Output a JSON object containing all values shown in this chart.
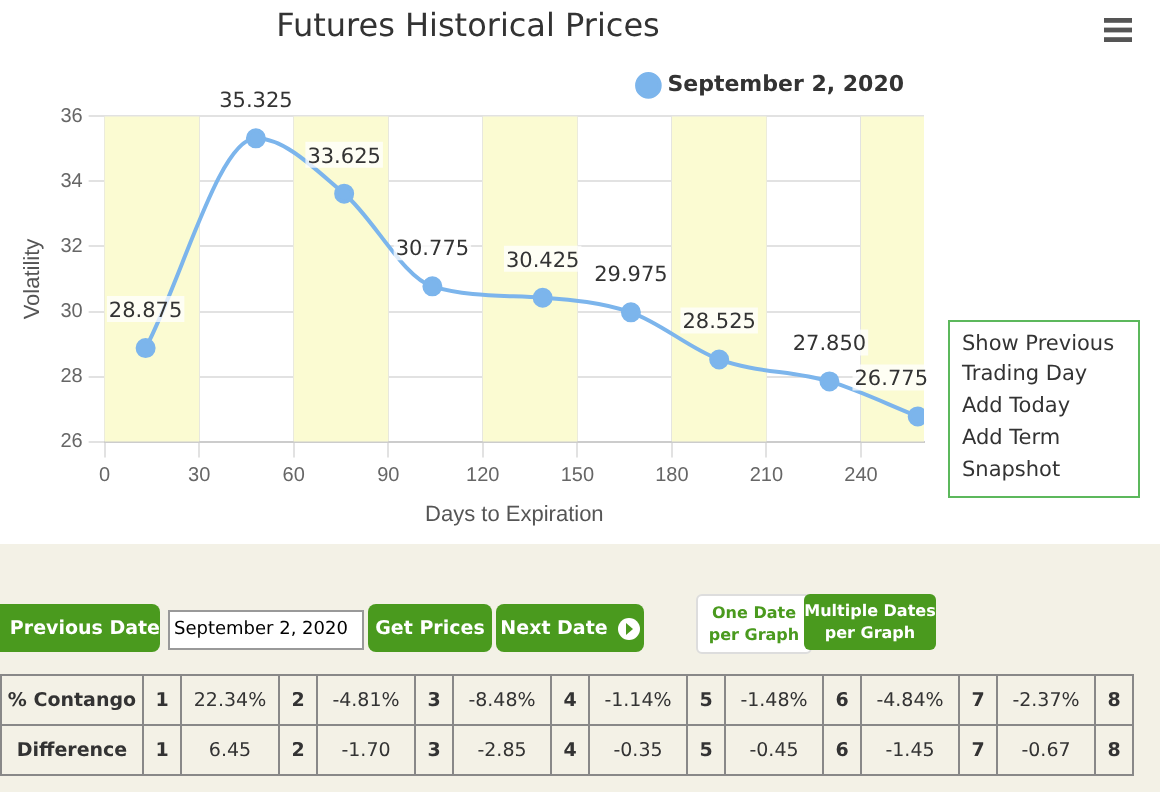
{
  "chart_data": {
    "type": "line",
    "title": "Futures Historical Prices",
    "xlabel": "Days to Expiration",
    "ylabel": "Volatility",
    "xlim": [
      0,
      260
    ],
    "xticks": [
      0,
      30,
      60,
      90,
      120,
      150,
      180,
      210,
      240
    ],
    "ylim": [
      26,
      36
    ],
    "yticks": [
      26,
      28,
      30,
      32,
      34,
      36
    ],
    "grid": true,
    "legend": "top right",
    "marker": "circle",
    "line_style": "solid",
    "bands": [
      {
        "axis": "x",
        "from": 0,
        "to": 30,
        "color": "#fbfbd2"
      },
      {
        "axis": "x",
        "from": 60,
        "to": 90,
        "color": "#fbfbd2"
      },
      {
        "axis": "x",
        "from": 120,
        "to": 150,
        "color": "#fbfbd2"
      },
      {
        "axis": "x",
        "from": 180,
        "to": 210,
        "color": "#fbfbd2"
      },
      {
        "axis": "x",
        "from": 240,
        "to": 260,
        "color": "#fbfbd2"
      }
    ],
    "series": [
      {
        "name": "September 2, 2020",
        "color": "#7cb5ec",
        "x": [
          13,
          48,
          76,
          104,
          139,
          167,
          195,
          230,
          258
        ],
        "values": [
          28.875,
          35.325,
          33.625,
          30.775,
          30.425,
          29.975,
          28.525,
          27.85,
          26.775
        ],
        "value_labels": [
          "28.875",
          "35.325",
          "33.625",
          "30.775",
          "30.425",
          "29.975",
          "28.525",
          "27.850",
          "26.775"
        ]
      }
    ],
    "annotations": [
      "Show Previous Trading Day",
      "Add Today",
      "Add Term",
      "Snapshot",
      "Previous Date",
      "September 2, 2020",
      "Get Prices",
      "Next Date",
      "One Date per Graph",
      "Multiple Dates per Graph",
      "% Contango",
      "1",
      "22.34%",
      "2",
      "-4.81%",
      "3",
      "-8.48%",
      "4",
      "-1.14%",
      "5",
      "-1.48%",
      "6",
      "-4.84%",
      "7",
      "-2.37%",
      "8",
      "Difference",
      "1",
      "6.45",
      "2",
      "-1.70",
      "3",
      "-2.85",
      "4",
      "-0.35",
      "5",
      "-0.45",
      "6",
      "-1.45",
      "7",
      "-0.67",
      "8"
    ]
  }
}
